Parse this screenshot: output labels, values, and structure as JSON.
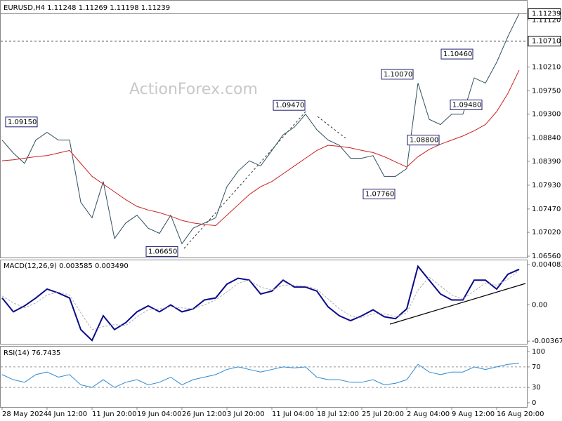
{
  "chart_data": [
    {
      "type": "line",
      "title": "EURUSD,H4 1.11248 1.11269 1.11198 1.11239",
      "watermark": "ActionForex.com",
      "ylim": [
        1.0652,
        1.1149
      ],
      "yticks": [
        {
          "value": 1.1112,
          "label": "1.11120"
        },
        {
          "value": 1.1021,
          "label": "1.10210"
        },
        {
          "value": 1.0975,
          "label": "1.09750"
        },
        {
          "value": 1.093,
          "label": "1.09300"
        },
        {
          "value": 1.0884,
          "label": "1.08840"
        },
        {
          "value": 1.0839,
          "label": "1.08390"
        },
        {
          "value": 1.0793,
          "label": "1.07930"
        },
        {
          "value": 1.0747,
          "label": "1.07470"
        },
        {
          "value": 1.0702,
          "label": "1.07020"
        },
        {
          "value": 1.0656,
          "label": "1.06560"
        }
      ],
      "price_lines": [
        {
          "value": 1.11239,
          "label": "1.11239",
          "style": "solid"
        },
        {
          "value": 1.1071,
          "label": "1.10710",
          "style": "dashed"
        }
      ],
      "annotations": [
        {
          "value": 1.0915,
          "label": "1.09150"
        },
        {
          "value": 1.0947,
          "label": "1.09470"
        },
        {
          "value": 1.0665,
          "label": "1.06650"
        },
        {
          "value": 1.0776,
          "label": "1.07760"
        },
        {
          "value": 1.088,
          "label": "1.08800"
        },
        {
          "value": 1.1007,
          "label": "1.10070"
        },
        {
          "value": 1.1046,
          "label": "1.10460"
        },
        {
          "value": 1.0948,
          "label": "1.09480"
        }
      ],
      "series": [
        {
          "color": "#2f4f5f",
          "values": [
            1.088,
            1.0855,
            1.0835,
            1.088,
            1.0895,
            1.088,
            1.088,
            1.076,
            1.073,
            1.08,
            1.069,
            1.072,
            1.0735,
            1.071,
            1.07,
            1.0735,
            1.068,
            1.071,
            1.072,
            1.073,
            1.079,
            1.082,
            1.084,
            1.083,
            1.086,
            1.089,
            1.0905,
            1.093,
            1.09,
            1.088,
            1.087,
            1.0845,
            1.0845,
            1.085,
            1.081,
            1.081,
            1.0825,
            1.099,
            1.092,
            1.091,
            1.093,
            1.093,
            1.1,
            1.099,
            1.103,
            1.108,
            1.1124
          ]
        },
        {
          "color": "#cc2020",
          "values": [
            1.084,
            1.0842,
            1.0845,
            1.0848,
            1.085,
            1.0855,
            1.086,
            1.0835,
            1.081,
            1.0795,
            1.078,
            1.0765,
            1.0752,
            1.0745,
            1.074,
            1.0733,
            1.0725,
            1.072,
            1.0717,
            1.0715,
            1.0735,
            1.0755,
            1.0775,
            1.079,
            1.08,
            1.0815,
            1.083,
            1.0845,
            1.086,
            1.087,
            1.0868,
            1.0865,
            1.086,
            1.0856,
            1.0848,
            1.0838,
            1.0828,
            1.0848,
            1.0862,
            1.0872,
            1.088,
            1.0888,
            1.0898,
            1.091,
            1.0935,
            1.097,
            1.1015
          ]
        }
      ]
    },
    {
      "type": "line",
      "title": "MACD(12,26,9) 0.003585 0.003490",
      "ylim": [
        -0.00394,
        0.00451
      ],
      "yticks": [
        0.004083,
        {
          "value": 0,
          "label": "0.00"
        },
        -0.003672
      ],
      "series": [
        {
          "color": "#0a0a8c",
          "values": [
            0.0007,
            -0.0007,
            -0.0001,
            0.0007,
            0.0016,
            0.0012,
            0.0007,
            -0.0025,
            -0.0036,
            -0.0011,
            -0.0025,
            -0.0018,
            -0.0007,
            -0.0001,
            -0.0007,
            0,
            -0.0007,
            -0.0004,
            0.0005,
            0.0007,
            0.0021,
            0.0027,
            0.0025,
            0.0011,
            0.0014,
            0.0025,
            0.0018,
            0.0018,
            0.0014,
            -0.0002,
            -0.0011,
            -0.0016,
            -0.0011,
            -0.0005,
            -0.0012,
            -0.0014,
            -0.0004,
            0.0039,
            0.0025,
            0.0011,
            0.0005,
            0.0005,
            0.0025,
            0.0025,
            0.0016,
            0.0031,
            0.0036
          ]
        },
        {
          "color": "#b0b0b0",
          "values": [
            0.0009,
            0.0002,
            -0.0003,
            0.0002,
            0.001,
            0.0013,
            0.001,
            -0.0008,
            -0.0025,
            -0.0022,
            -0.002,
            -0.0021,
            -0.0012,
            -0.0005,
            -0.0004,
            -0.0002,
            -0.0003,
            -0.0004,
            0,
            0.0005,
            0.0013,
            0.0022,
            0.0025,
            0.0018,
            0.0015,
            0.002,
            0.002,
            0.0019,
            0.0016,
            0.0006,
            -0.0004,
            -0.0011,
            -0.0013,
            -0.0009,
            -0.0009,
            -0.0012,
            -0.0008,
            0.0015,
            0.0028,
            0.0019,
            0.001,
            0.0006,
            0.0014,
            0.0022,
            0.002,
            0.0026,
            0.0035
          ]
        }
      ]
    },
    {
      "type": "line",
      "title": "RSI(14) 76.7435",
      "ylim": [
        -8.2,
        109.6
      ],
      "yticks": [
        100,
        70,
        30,
        0
      ],
      "levels": [
        70,
        30
      ],
      "categories": [
        "28 May 2024",
        null,
        null,
        null,
        "4 Jun 12:00",
        null,
        null,
        null,
        "11 Jun 20:00",
        null,
        null,
        null,
        "19 Jun 04:00",
        null,
        null,
        null,
        "26 Jun 12:00",
        null,
        null,
        null,
        "3 Jul 20:00",
        null,
        null,
        null,
        "11 Jul 04:00",
        null,
        null,
        null,
        "18 Jul 12:00",
        null,
        null,
        null,
        "25 Jul 20:00",
        null,
        null,
        null,
        "2 Aug 04:00",
        null,
        null,
        null,
        "9 Aug 12:00",
        null,
        null,
        null,
        "16 Aug 20:00",
        null,
        null
      ],
      "series": [
        {
          "color": "#2a8ad4",
          "values": [
            55,
            45,
            40,
            55,
            60,
            50,
            55,
            35,
            30,
            45,
            30,
            40,
            45,
            35,
            40,
            50,
            35,
            45,
            50,
            55,
            65,
            70,
            65,
            60,
            65,
            70,
            68,
            70,
            50,
            45,
            45,
            40,
            40,
            45,
            35,
            38,
            45,
            75,
            60,
            55,
            60,
            60,
            70,
            65,
            70,
            75,
            77
          ]
        }
      ]
    }
  ]
}
